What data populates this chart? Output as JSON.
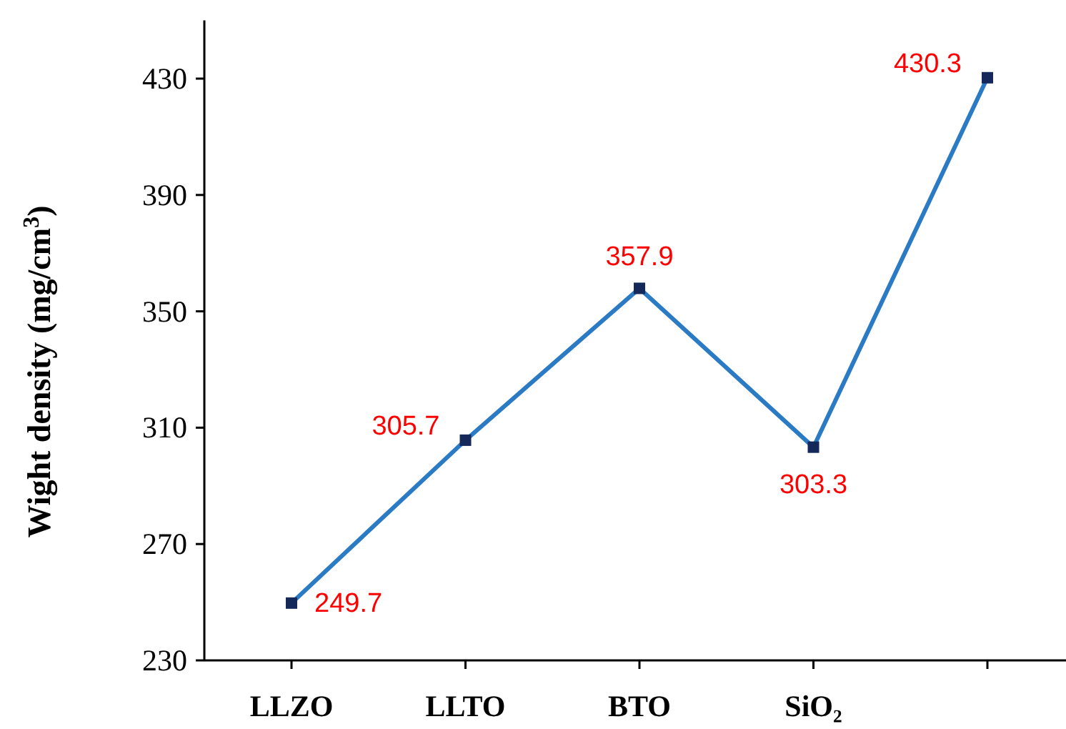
{
  "chart_data": {
    "type": "line",
    "ylabel": "Wight density (mg/cm$^{3}$)",
    "categories": [
      "LLZO",
      "LLTO",
      "BTO",
      "SiO₂",
      null
    ],
    "series": [
      {
        "color": "#2a7bc4",
        "values": [
          249.7,
          305.7,
          357.9,
          303.3,
          430.3
        ]
      }
    ],
    "ylim": [
      230,
      450
    ],
    "yticks": [
      230,
      270,
      310,
      350,
      390,
      430
    ],
    "data_labels": true,
    "marker": "square"
  }
}
